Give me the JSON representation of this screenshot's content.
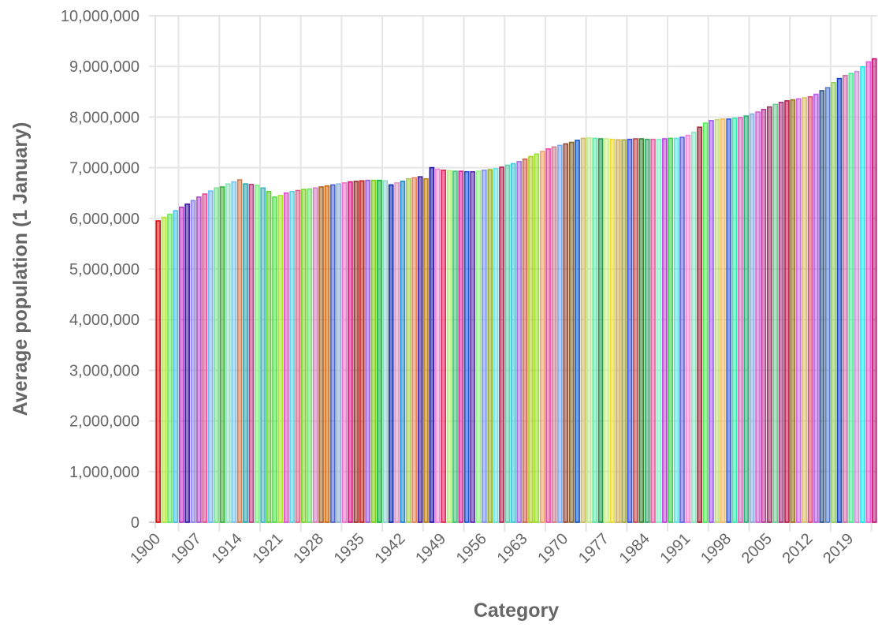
{
  "chart_data": {
    "type": "bar",
    "title": "",
    "xlabel": "Category",
    "ylabel": "Average population (1 January)",
    "ylim": [
      0,
      10000000
    ],
    "y_tick_step": 1000000,
    "x_tick_every": 7,
    "grid": true,
    "legend": "none",
    "categories_start": 1900,
    "categories_end": 2023,
    "values": [
      5950000,
      6020000,
      6080000,
      6150000,
      6220000,
      6280000,
      6350000,
      6420000,
      6480000,
      6540000,
      6600000,
      6620000,
      6680000,
      6720000,
      6760000,
      6680000,
      6670000,
      6650000,
      6600000,
      6530000,
      6420000,
      6450000,
      6500000,
      6530000,
      6550000,
      6570000,
      6580000,
      6600000,
      6620000,
      6640000,
      6660000,
      6680000,
      6700000,
      6720000,
      6730000,
      6740000,
      6750000,
      6750000,
      6750000,
      6740000,
      6660000,
      6700000,
      6730000,
      6780000,
      6800000,
      6820000,
      6780000,
      7000000,
      6970000,
      6950000,
      6940000,
      6930000,
      6930000,
      6920000,
      6920000,
      6930000,
      6950000,
      6960000,
      6980000,
      7010000,
      7050000,
      7080000,
      7120000,
      7170000,
      7220000,
      7270000,
      7320000,
      7370000,
      7410000,
      7440000,
      7470000,
      7500000,
      7540000,
      7580000,
      7590000,
      7580000,
      7570000,
      7570000,
      7560000,
      7550000,
      7550000,
      7560000,
      7570000,
      7570000,
      7560000,
      7560000,
      7560000,
      7570000,
      7580000,
      7580000,
      7600000,
      7640000,
      7700000,
      7800000,
      7880000,
      7930000,
      7950000,
      7960000,
      7960000,
      7980000,
      7990000,
      8020000,
      8060000,
      8100000,
      8150000,
      8200000,
      8250000,
      8290000,
      8320000,
      8340000,
      8360000,
      8380000,
      8400000,
      8450000,
      8520000,
      8580000,
      8680000,
      8760000,
      8820000,
      8860000,
      8900000,
      8990000,
      9090000,
      9150000
    ]
  }
}
